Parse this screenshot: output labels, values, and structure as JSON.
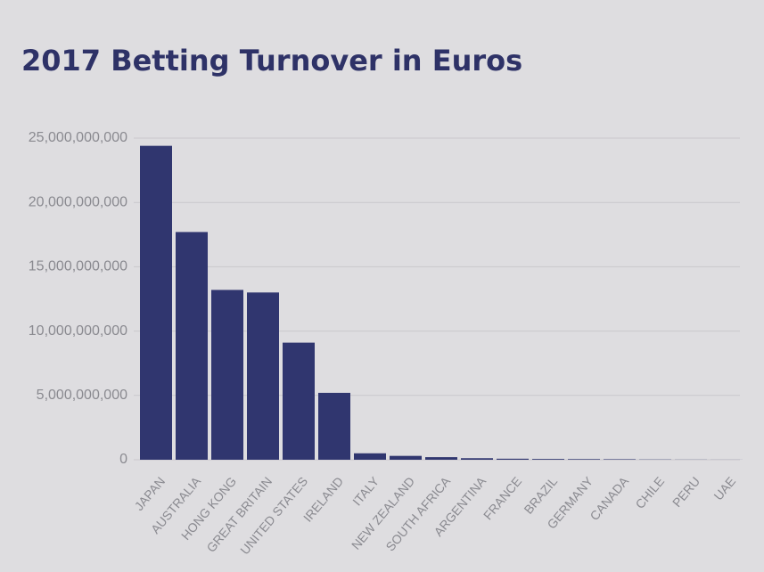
{
  "chart_data": {
    "type": "bar",
    "title": "2017 Betting Turnover in  Euros",
    "categories": [
      "JAPAN",
      "AUSTRALIA",
      "HONG KONG",
      "GREAT BRITAIN",
      "UNITED STATES",
      "IRELAND",
      "ITALY",
      "NEW ZEALAND",
      "SOUTH AFRICA",
      "ARGENTINA",
      "FRANCE",
      "BRAZIL",
      "GERMANY",
      "CANADA",
      "CHILE",
      "PERU",
      "UAE"
    ],
    "values": [
      24400000000,
      17700000000,
      13200000000,
      13000000000,
      9100000000,
      5200000000,
      500000000,
      300000000,
      200000000,
      120000000,
      80000000,
      60000000,
      50000000,
      40000000,
      20000000,
      10000000,
      5000000
    ],
    "color": "#30366f",
    "ylim": [
      0,
      25000000000
    ],
    "yticks": [
      0,
      {
        "value": 5000000000,
        "label": "5,000,000,000"
      },
      {
        "value": 10000000000,
        "label": "10,000,000,000"
      },
      {
        "value": 15000000000,
        "label": "15,000,000,000"
      },
      {
        "value": 20000000000,
        "label": "20,000,000,000"
      },
      {
        "value": 25000000000,
        "label": "25,000,000,000"
      }
    ],
    "grid": true
  }
}
